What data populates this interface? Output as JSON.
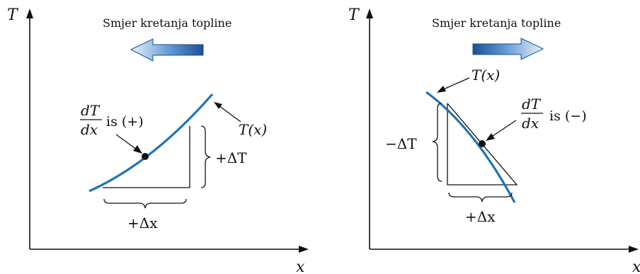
{
  "colors": {
    "curve": "#1f73b4",
    "arrow_dark": "#1c4f95",
    "arrow_light": "#e8f1fa",
    "ink": "#111111"
  },
  "left": {
    "y_axis_label": "T",
    "x_axis_label": "x",
    "heading": "Smjer kretanja topline",
    "heading_arrow": "arrow-left-icon",
    "slope_num": "dT",
    "slope_den": "dx",
    "slope_sign": "is (+)",
    "curve_label": "T(x)",
    "delta_t_label": "+ΔT",
    "delta_x_label": "+Δx"
  },
  "right": {
    "y_axis_label": "T",
    "x_axis_label": "x",
    "heading": "Smjer kretanja topline",
    "heading_arrow": "arrow-right-icon",
    "slope_num": "dT",
    "slope_den": "dx",
    "slope_sign": "is (−)",
    "curve_label": "T(x)",
    "delta_t_label": "−ΔT",
    "delta_x_label": "+Δx"
  }
}
